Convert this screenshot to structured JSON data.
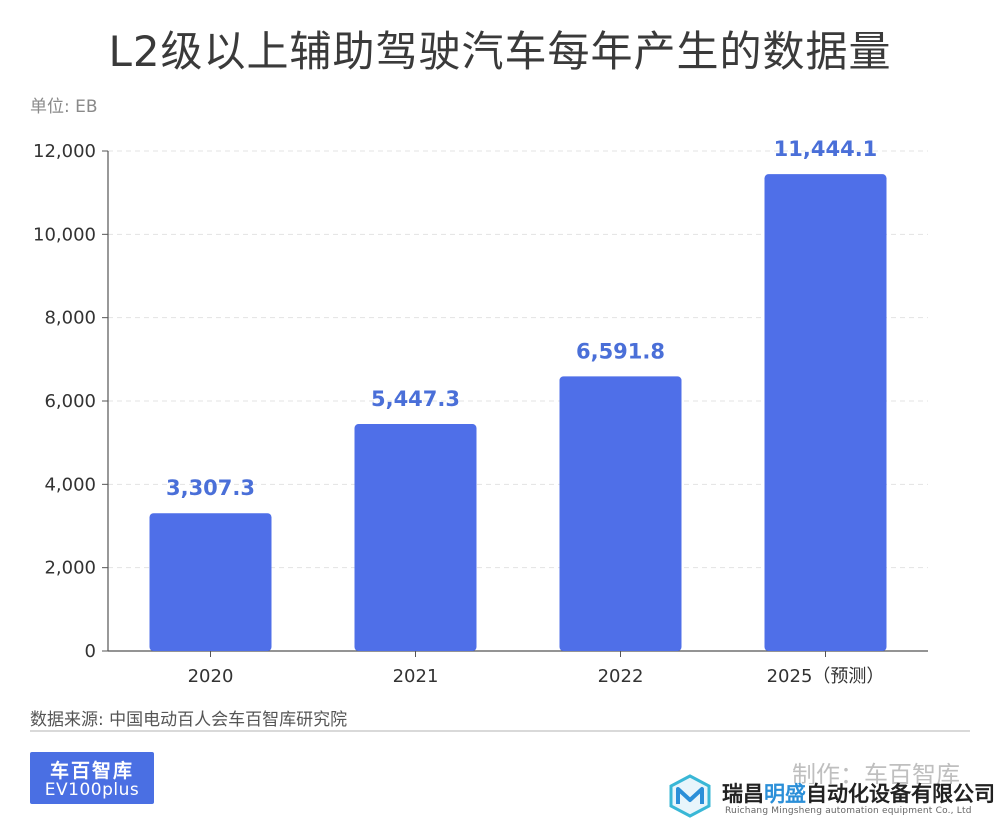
{
  "title": "L2级以上辅助驾驶汽车每年产生的数据量",
  "unit_label": "单位: EB",
  "source": "数据来源: 中国电动百人会车百智库研究院",
  "logo": {
    "line1": "车百智库",
    "line2": "EV100plus"
  },
  "credit": "制作：车百智库",
  "watermark": {
    "name_prefix": "瑞昌",
    "name_accent": "明盛",
    "name_suffix": "自动化设备有限公司",
    "english": "Ruichang Mingsheng automation equipment Co., Ltd",
    "icon": "cube-logo-icon"
  },
  "colors": {
    "bar": "#4f6fe8",
    "value_label": "#4a6fd8",
    "grid": "#e3e3e3"
  },
  "chart_data": {
    "type": "bar",
    "title": "L2级以上辅助驾驶汽车每年产生的数据量",
    "ylabel": "单位: EB",
    "xlabel": "",
    "categories": [
      "2020",
      "2021",
      "2022",
      "2025（预测）"
    ],
    "values": [
      3307.3,
      5447.3,
      6591.8,
      11444.1
    ],
    "value_labels": [
      "3,307.3",
      "5,447.3",
      "6,591.8",
      "11,444.1"
    ],
    "ylim": [
      0,
      12000
    ],
    "yticks": [
      0,
      2000,
      4000,
      6000,
      8000,
      10000,
      12000
    ],
    "ytick_labels": [
      "0",
      "2,000",
      "4,000",
      "6,000",
      "8,000",
      "10,000",
      "12,000"
    ],
    "grid": true,
    "legend": "none"
  }
}
